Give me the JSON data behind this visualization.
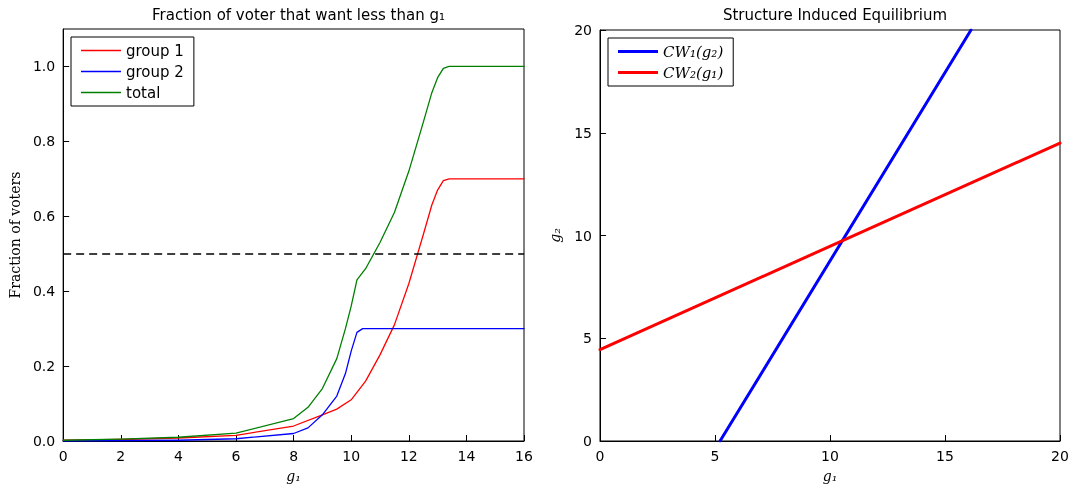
{
  "chart_data": [
    {
      "type": "line",
      "title": "Fraction of voter that want less than g₁",
      "xlabel": "g₁",
      "ylabel": "Fraction of voters",
      "xlim": [
        0,
        16
      ],
      "xticks": [
        0,
        2,
        4,
        6,
        8,
        10,
        12,
        14,
        16
      ],
      "ylim": [
        0,
        1.1
      ],
      "yticks": [
        {
          "value": 0,
          "label": "0.0"
        },
        {
          "value": 0.2,
          "label": "0.2"
        },
        {
          "value": 0.4,
          "label": "0.4"
        },
        {
          "value": 0.6,
          "label": "0.6"
        },
        {
          "value": 0.8,
          "label": "0.8"
        },
        {
          "value": 1,
          "label": "1.0"
        }
      ],
      "grid": false,
      "legend": "top left",
      "marker": "none",
      "line_style": "solid",
      "ref_lines": [
        {
          "axis": "y",
          "value": 0.5,
          "color": "#000000",
          "line_style": "dashed"
        }
      ],
      "series": [
        {
          "name": "group 1",
          "color": "#ff0000",
          "x": [
            0,
            2,
            4,
            6,
            8,
            9,
            9.5,
            10,
            10.5,
            11,
            11.5,
            12,
            12.5,
            12.8,
            13,
            13.2,
            13.4,
            16
          ],
          "values": [
            0.002,
            0.004,
            0.008,
            0.015,
            0.04,
            0.07,
            0.085,
            0.11,
            0.16,
            0.23,
            0.31,
            0.42,
            0.55,
            0.63,
            0.67,
            0.695,
            0.7,
            0.7
          ]
        },
        {
          "name": "group 2",
          "color": "#0000ff",
          "x": [
            0,
            4,
            6,
            8,
            8.5,
            9,
            9.5,
            9.8,
            10,
            10.2,
            10.4,
            16
          ],
          "values": [
            0,
            0.002,
            0.006,
            0.02,
            0.035,
            0.07,
            0.12,
            0.18,
            0.24,
            0.29,
            0.3,
            0.3
          ]
        },
        {
          "name": "total",
          "color": "#008000",
          "x": [
            0,
            2,
            4,
            6,
            8,
            8.5,
            9,
            9.5,
            9.8,
            10,
            10.2,
            10.5,
            11,
            11.5,
            12,
            12.5,
            12.8,
            13,
            13.2,
            13.4,
            16
          ],
          "values": [
            0.002,
            0.005,
            0.01,
            0.021,
            0.06,
            0.09,
            0.14,
            0.22,
            0.3,
            0.36,
            0.43,
            0.46,
            0.53,
            0.61,
            0.72,
            0.85,
            0.93,
            0.97,
            0.995,
            1,
            1
          ]
        }
      ]
    },
    {
      "type": "line",
      "title": "Structure Induced Equilibrium",
      "xlabel": "g₁",
      "ylabel": "g₂",
      "xlim": [
        0,
        20
      ],
      "xticks": [
        0,
        5,
        10,
        15,
        20
      ],
      "ylim": [
        0,
        20
      ],
      "yticks": [
        0,
        5,
        10,
        15,
        20
      ],
      "grid": false,
      "legend": "top left",
      "marker": "none",
      "line_style": "solid",
      "series": [
        {
          "name": "CW₁(g₂)",
          "color": "#0000ff",
          "x": [
            5.22,
            16.13
          ],
          "values": [
            0,
            20
          ]
        },
        {
          "name": "CW₂(g₁)",
          "color": "#ff0000",
          "x": [
            0,
            20
          ],
          "values": [
            4.45,
            14.5
          ]
        }
      ]
    }
  ]
}
